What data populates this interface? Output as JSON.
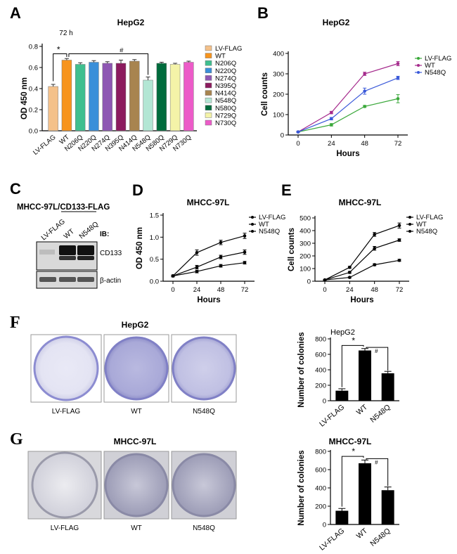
{
  "panel_labels": {
    "a": "A",
    "b": "B",
    "c": "C",
    "d": "D",
    "e": "E",
    "f": "F",
    "g": "G"
  },
  "colors": {
    "lv_flag": "#f4c18a",
    "wt": "#f7941d",
    "n206q": "#3fbf8f",
    "n220q": "#3a8fd9",
    "n274q": "#8e57b3",
    "n395q": "#8c1b5e",
    "n414q": "#a8844f",
    "n548q": "#b3e6d4",
    "n580q": "#006b3c",
    "n729q": "#f4f3a8",
    "n730q": "#ec5bc8",
    "line_lv": "#3aa83a",
    "line_wt": "#a52a8c",
    "line_n548q": "#3a59d9",
    "dish_purple": "#8c8cd1"
  },
  "chart_data": [
    {
      "id": "A",
      "type": "bar",
      "title": "HepG2",
      "subtitle": "72 h",
      "ylabel": "OD 450 nm",
      "ylim": [
        0,
        0.8
      ],
      "yticks": [
        0,
        0.2,
        0.4,
        0.6,
        0.8
      ],
      "categories": [
        "LV-FLAG",
        "WT",
        "N206Q",
        "N220Q",
        "N274Q",
        "N395Q",
        "N414Q",
        "N548Q",
        "N580Q",
        "N729Q",
        "N730Q"
      ],
      "values": [
        0.42,
        0.67,
        0.63,
        0.65,
        0.64,
        0.64,
        0.66,
        0.48,
        0.64,
        0.63,
        0.65
      ],
      "errors": [
        0.02,
        0.015,
        0.015,
        0.015,
        0.015,
        0.03,
        0.015,
        0.03,
        0.01,
        0.01,
        0.01
      ],
      "legend": [
        "LV-FLAG",
        "WT",
        "N206Q",
        "N220Q",
        "N274Q",
        "N395Q",
        "N414Q",
        "N548Q",
        "N580Q",
        "N729Q",
        "N730Q"
      ],
      "annotations": [
        "*",
        "#"
      ]
    },
    {
      "id": "B",
      "type": "line",
      "title": "HepG2",
      "xlabel": "Hours",
      "ylabel": "Cell counts",
      "x": [
        0,
        24,
        48,
        72
      ],
      "ylim": [
        0,
        400
      ],
      "yticks": [
        0,
        100,
        200,
        300,
        400
      ],
      "series": [
        {
          "name": "LV-FLAG",
          "values": [
            15,
            50,
            140,
            178
          ],
          "errors": [
            3,
            6,
            5,
            20
          ]
        },
        {
          "name": "WT",
          "values": [
            15,
            110,
            300,
            350
          ],
          "errors": [
            3,
            6,
            8,
            10
          ]
        },
        {
          "name": "N548Q",
          "values": [
            15,
            80,
            215,
            280
          ],
          "errors": [
            3,
            6,
            15,
            8
          ]
        }
      ]
    },
    {
      "id": "D",
      "type": "line",
      "title": "MHCC-97L",
      "xlabel": "Hours",
      "ylabel": "OD 450 nm",
      "x": [
        0,
        24,
        48,
        72
      ],
      "ylim": [
        0,
        1.5
      ],
      "yticks": [
        0.0,
        0.5,
        1.0,
        1.5
      ],
      "series": [
        {
          "name": "LV-FLAG",
          "values": [
            0.12,
            0.65,
            0.88,
            1.03
          ],
          "errors": [
            0.02,
            0.06,
            0.05,
            0.06
          ]
        },
        {
          "name": "WT",
          "values": [
            0.12,
            0.32,
            0.55,
            0.66
          ],
          "errors": [
            0.02,
            0.04,
            0.04,
            0.05
          ]
        },
        {
          "name": "N548Q",
          "values": [
            0.12,
            0.22,
            0.35,
            0.42
          ],
          "errors": [
            0.02,
            0.03,
            0.03,
            0.03
          ]
        }
      ]
    },
    {
      "id": "E",
      "type": "line",
      "title": "MHCC-97L",
      "xlabel": "Hours",
      "ylabel": "Cell counts",
      "x": [
        0,
        24,
        48,
        72
      ],
      "ylim": [
        0,
        500
      ],
      "yticks": [
        0,
        100,
        200,
        300,
        400,
        500
      ],
      "series": [
        {
          "name": "LV-FLAG",
          "values": [
            10,
            110,
            370,
            440
          ],
          "errors": [
            3,
            8,
            15,
            20
          ]
        },
        {
          "name": "WT",
          "values": [
            10,
            70,
            260,
            325
          ],
          "errors": [
            3,
            8,
            15,
            10
          ]
        },
        {
          "name": "N548Q",
          "values": [
            10,
            30,
            130,
            165
          ],
          "errors": [
            3,
            5,
            8,
            8
          ]
        }
      ]
    },
    {
      "id": "F",
      "type": "bar",
      "title": "HepG2",
      "ylabel": "Number of colonies",
      "categories": [
        "LV-FLAG",
        "WT",
        "N548Q"
      ],
      "values": [
        130,
        650,
        355
      ],
      "errors": [
        25,
        25,
        25
      ],
      "ylim": [
        0,
        800
      ],
      "yticks": [
        0,
        200,
        400,
        600,
        800
      ],
      "annotations": [
        "*",
        "#"
      ]
    },
    {
      "id": "G",
      "type": "bar",
      "title": "MHCC-97L",
      "ylabel": "Number of colonies",
      "categories": [
        "LV-FLAG",
        "WT",
        "N548Q"
      ],
      "values": [
        150,
        670,
        375
      ],
      "errors": [
        25,
        35,
        35
      ],
      "ylim": [
        0,
        800
      ],
      "yticks": [
        0,
        200,
        400,
        600,
        800
      ],
      "annotations": [
        "*",
        "#"
      ]
    }
  ],
  "western": {
    "title": "MHCC-97L/CD133-FLAG",
    "lanes": [
      "LV-FLAG",
      "WT",
      "N548Q"
    ],
    "ib_label": "IB:",
    "bands": [
      "CD133",
      "β-actin"
    ]
  },
  "dishes": {
    "F": {
      "title": "HepG2",
      "labels": [
        "LV-FLAG",
        "WT",
        "N548Q"
      ]
    },
    "G": {
      "title": "MHCC-97L",
      "labels": [
        "LV-FLAG",
        "WT",
        "N548Q"
      ]
    }
  }
}
